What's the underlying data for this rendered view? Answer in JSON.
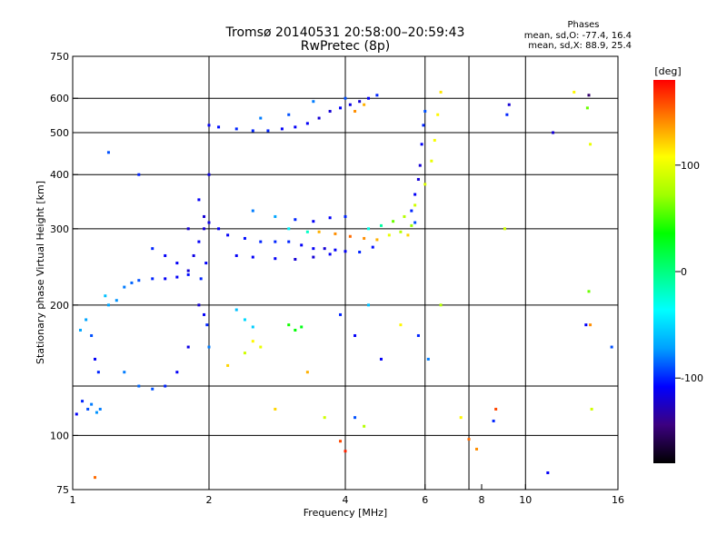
{
  "chart_data": {
    "type": "scatter",
    "title": "Tromsø 20140531 20:58:00–20:59:43",
    "subtitle": "RwPretec (8p)",
    "xlabel": "Frequency [MHz]",
    "ylabel": "Stationary phase Virtual Height [km]",
    "x_scale": "log",
    "y_scale": "log",
    "xlim": [
      1,
      16
    ],
    "ylim": [
      75,
      750
    ],
    "x_ticks": [
      1,
      2,
      4,
      6,
      8,
      10,
      16
    ],
    "x_tick_labels": [
      "1",
      "2",
      "4",
      "6",
      "8",
      "10",
      "16"
    ],
    "x_grid": [
      2,
      4,
      6,
      7.5,
      10
    ],
    "y_ticks": [
      75,
      100,
      200,
      300,
      400,
      500,
      600,
      750
    ],
    "y_tick_labels": [
      "75",
      "100",
      "200",
      "300",
      "400",
      "500",
      "600",
      "750"
    ],
    "y_grid": [
      100,
      130,
      200,
      300,
      400,
      500,
      600
    ],
    "grid": true,
    "stats": {
      "heading": "Phases",
      "line_o": "mean, sd,O: -77.4, 16.4",
      "line_x": "mean, sd,X:  88.9, 25.4"
    },
    "colorbar": {
      "unit": "[deg]",
      "min": -180,
      "max": 180,
      "ticks": [
        100,
        0,
        -100
      ],
      "tick_labels": [
        "100",
        "0",
        "-100"
      ],
      "colors": [
        "#000000",
        "#3c0080",
        "#0000ff",
        "#00a0ff",
        "#00ffff",
        "#00ff80",
        "#00ff00",
        "#a0ff00",
        "#ffff00",
        "#ff8000",
        "#ff0000"
      ]
    },
    "series": [
      {
        "values": [
          [
            1.02,
            112,
            -110
          ],
          [
            1.05,
            120,
            -100
          ],
          [
            1.08,
            115,
            -90
          ],
          [
            1.1,
            118,
            -80
          ],
          [
            1.13,
            113,
            -75
          ],
          [
            1.15,
            115,
            -80
          ],
          [
            1.04,
            175,
            -70
          ],
          [
            1.07,
            185,
            -70
          ],
          [
            1.1,
            170,
            -90
          ],
          [
            1.12,
            150,
            -110
          ],
          [
            1.14,
            140,
            -100
          ],
          [
            1.18,
            210,
            -60
          ],
          [
            1.2,
            200,
            -70
          ],
          [
            1.25,
            205,
            -75
          ],
          [
            1.3,
            220,
            -80
          ],
          [
            1.35,
            225,
            -85
          ],
          [
            1.4,
            228,
            -90
          ],
          [
            1.5,
            230,
            -100
          ],
          [
            1.6,
            230,
            -110
          ],
          [
            1.7,
            232,
            -110
          ],
          [
            1.8,
            235,
            -105
          ],
          [
            1.3,
            140,
            -80
          ],
          [
            1.4,
            130,
            -85
          ],
          [
            1.5,
            128,
            -90
          ],
          [
            1.6,
            130,
            -100
          ],
          [
            1.7,
            140,
            -110
          ],
          [
            1.8,
            160,
            -115
          ],
          [
            1.9,
            200,
            -120
          ],
          [
            1.8,
            300,
            -120
          ],
          [
            1.85,
            260,
            -115
          ],
          [
            1.9,
            280,
            -110
          ],
          [
            1.92,
            230,
            -100
          ],
          [
            1.95,
            300,
            -120
          ],
          [
            1.97,
            250,
            -110
          ],
          [
            2.0,
            310,
            -115
          ],
          [
            1.9,
            350,
            -110
          ],
          [
            1.95,
            320,
            -120
          ],
          [
            2.0,
            400,
            -115
          ],
          [
            1.98,
            180,
            -100
          ],
          [
            1.95,
            190,
            -110
          ],
          [
            1.5,
            270,
            -100
          ],
          [
            1.6,
            260,
            -110
          ],
          [
            1.7,
            250,
            -110
          ],
          [
            1.8,
            240,
            -120
          ],
          [
            2.0,
            520,
            -110
          ],
          [
            2.1,
            515,
            -105
          ],
          [
            2.3,
            510,
            -100
          ],
          [
            2.5,
            505,
            -100
          ],
          [
            2.7,
            505,
            -100
          ],
          [
            2.9,
            510,
            -110
          ],
          [
            3.1,
            515,
            -110
          ],
          [
            3.3,
            525,
            -110
          ],
          [
            3.5,
            540,
            -120
          ],
          [
            3.7,
            560,
            -120
          ],
          [
            3.9,
            570,
            -110
          ],
          [
            4.1,
            580,
            -115
          ],
          [
            4.3,
            590,
            -120
          ],
          [
            4.5,
            600,
            -110
          ],
          [
            4.7,
            610,
            -100
          ],
          [
            2.6,
            540,
            -80
          ],
          [
            3.0,
            550,
            -90
          ],
          [
            3.4,
            590,
            -80
          ],
          [
            4.0,
            600,
            -90
          ],
          [
            4.2,
            560,
            140
          ],
          [
            4.4,
            580,
            130
          ],
          [
            2.1,
            300,
            -110
          ],
          [
            2.2,
            290,
            -110
          ],
          [
            2.4,
            285,
            -105
          ],
          [
            2.6,
            280,
            -100
          ],
          [
            2.8,
            280,
            -100
          ],
          [
            3.0,
            280,
            -100
          ],
          [
            3.2,
            275,
            -110
          ],
          [
            3.4,
            270,
            -110
          ],
          [
            3.6,
            270,
            -120
          ],
          [
            3.8,
            268,
            -110
          ],
          [
            4.0,
            266,
            -110
          ],
          [
            4.3,
            265,
            -100
          ],
          [
            4.6,
            272,
            -105
          ],
          [
            2.3,
            260,
            -110
          ],
          [
            2.5,
            258,
            -110
          ],
          [
            2.8,
            256,
            -110
          ],
          [
            3.1,
            255,
            -120
          ],
          [
            3.4,
            258,
            -120
          ],
          [
            3.7,
            262,
            -110
          ],
          [
            2.5,
            330,
            -80
          ],
          [
            2.8,
            320,
            -70
          ],
          [
            3.1,
            315,
            -100
          ],
          [
            3.4,
            312,
            -110
          ],
          [
            3.7,
            318,
            -110
          ],
          [
            4.0,
            320,
            -100
          ],
          [
            3.0,
            300,
            -40
          ],
          [
            3.3,
            295,
            -20
          ],
          [
            3.5,
            295,
            130
          ],
          [
            3.8,
            292,
            140
          ],
          [
            4.1,
            288,
            150
          ],
          [
            4.4,
            285,
            140
          ],
          [
            4.7,
            283,
            130
          ],
          [
            5.0,
            290,
            100
          ],
          [
            5.3,
            295,
            80
          ],
          [
            5.6,
            305,
            70
          ],
          [
            4.5,
            300,
            -30
          ],
          [
            4.8,
            305,
            -10
          ],
          [
            5.1,
            312,
            60
          ],
          [
            5.4,
            320,
            80
          ],
          [
            5.7,
            340,
            90
          ],
          [
            6.0,
            380,
            95
          ],
          [
            6.2,
            430,
            100
          ],
          [
            6.3,
            480,
            105
          ],
          [
            6.4,
            550,
            110
          ],
          [
            6.5,
            620,
            115
          ],
          [
            5.6,
            330,
            -100
          ],
          [
            5.7,
            360,
            -110
          ],
          [
            5.8,
            390,
            -120
          ],
          [
            5.85,
            420,
            -120
          ],
          [
            5.9,
            470,
            -110
          ],
          [
            5.95,
            520,
            -100
          ],
          [
            6.0,
            560,
            -90
          ],
          [
            3.0,
            180,
            40
          ],
          [
            3.1,
            175,
            35
          ],
          [
            3.2,
            178,
            30
          ],
          [
            2.5,
            165,
            110
          ],
          [
            2.6,
            160,
            100
          ],
          [
            2.4,
            155,
            90
          ],
          [
            2.3,
            195,
            -60
          ],
          [
            2.4,
            185,
            -50
          ],
          [
            2.5,
            178,
            -55
          ],
          [
            3.9,
            190,
            -100
          ],
          [
            4.2,
            170,
            -110
          ],
          [
            4.5,
            200,
            -60
          ],
          [
            5.3,
            180,
            110
          ],
          [
            5.8,
            170,
            -100
          ],
          [
            6.1,
            150,
            -80
          ],
          [
            6.5,
            200,
            80
          ],
          [
            7.2,
            110,
            110
          ],
          [
            7.5,
            98,
            150
          ],
          [
            7.8,
            93,
            140
          ],
          [
            8.5,
            108,
            -100
          ],
          [
            8.6,
            115,
            160
          ],
          [
            9.0,
            300,
            90
          ],
          [
            9.1,
            550,
            -100
          ],
          [
            9.2,
            580,
            -120
          ],
          [
            11.2,
            82,
            -110
          ],
          [
            11.5,
            500,
            -120
          ],
          [
            12.8,
            620,
            110
          ],
          [
            13.8,
            610,
            -150
          ],
          [
            13.9,
            470,
            100
          ],
          [
            13.7,
            570,
            60
          ],
          [
            13.8,
            215,
            60
          ],
          [
            13.9,
            180,
            140
          ],
          [
            14.0,
            115,
            90
          ],
          [
            15.5,
            160,
            -90
          ],
          [
            13.6,
            180,
            -110
          ],
          [
            1.12,
            80,
            150
          ],
          [
            3.9,
            97,
            160
          ],
          [
            4.0,
            92,
            170
          ],
          [
            4.2,
            110,
            -90
          ],
          [
            4.4,
            105,
            80
          ],
          [
            4.8,
            150,
            -110
          ],
          [
            5.5,
            290,
            120
          ],
          [
            5.7,
            310,
            -90
          ],
          [
            2.8,
            115,
            120
          ],
          [
            3.3,
            140,
            130
          ],
          [
            3.6,
            110,
            90
          ],
          [
            2.2,
            145,
            120
          ],
          [
            2.0,
            160,
            -80
          ],
          [
            1.4,
            400,
            -100
          ],
          [
            1.2,
            450,
            -90
          ]
        ]
      }
    ]
  }
}
